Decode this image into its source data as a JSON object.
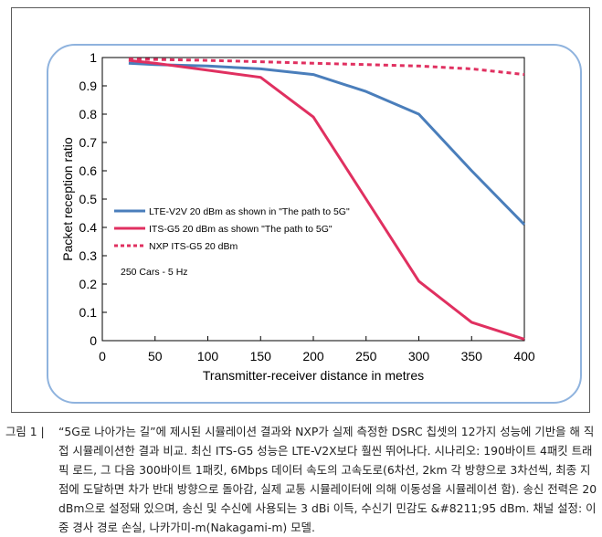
{
  "chart_data": {
    "type": "line",
    "title": "",
    "xlabel": "Transmitter-receiver distance in metres",
    "ylabel": "Packet reception ratio",
    "xlim": [
      0,
      400
    ],
    "ylim": [
      0,
      1
    ],
    "x_ticks": [
      "0",
      "50",
      "100",
      "150",
      "200",
      "250",
      "300",
      "350",
      "400"
    ],
    "y_ticks": [
      "0",
      "0.1",
      "0.2",
      "0.3",
      "0.4",
      "0.5",
      "0.6",
      "0.7",
      "0.8",
      "0.9",
      "1"
    ],
    "grid": false,
    "legend_position": "center-left",
    "annotation": "250 Cars - 5 Hz",
    "series": [
      {
        "name": "LTE-V2V 20 dBm as shown in \"The path to 5G\"",
        "color": "#4a7ebb",
        "style": "solid",
        "x": [
          25,
          50,
          100,
          150,
          200,
          250,
          300,
          350,
          400
        ],
        "y": [
          0.98,
          0.975,
          0.97,
          0.96,
          0.94,
          0.88,
          0.8,
          0.6,
          0.41
        ]
      },
      {
        "name": "ITS-G5 20 dBm as shown \"The path to 5G\"",
        "color": "#e03060",
        "style": "solid",
        "x": [
          25,
          50,
          100,
          150,
          200,
          250,
          300,
          350,
          400
        ],
        "y": [
          0.99,
          0.98,
          0.955,
          0.93,
          0.79,
          0.5,
          0.21,
          0.065,
          0.005
        ]
      },
      {
        "name": "NXP ITS-G5 20 dBm",
        "color": "#e03060",
        "style": "dashed",
        "x": [
          25,
          100,
          200,
          300,
          350,
          400
        ],
        "y": [
          0.995,
          0.99,
          0.98,
          0.97,
          0.96,
          0.94
        ]
      }
    ]
  },
  "caption": {
    "label": "그림 1 |",
    "text": "“5G로 나아가는 길”에 제시된 시뮬레이션 결과와 NXP가 실제 측정한 DSRC 칩셋의 12가지 성능에 기반을 해 직접 시뮬레이션한 결과 비교. 최신 ITS-G5 성능은 LTE-V2X보다 훨씬 뛰어나다. 시나리오: 190바이트 4패킷 트래픽 로드, 그 다음 300바이트 1패킷, 6Mbps 데이터 속도의 고속도로(6차선, 2km 각 방향으로 3차선씩, 최종 지점에 도달하면 차가 반대 방향으로 돌아감, 실제 교통 시뮬레이터에 의해 이동성을 시뮬레이션 함). 송신 전력은 20 dBm으로 설정돼 있으며, 송신 및 수신에 사용되는 3 dBi 이득, 수신기 민감도 &#8211;95 dBm. 채널 설정: 이중 경사 경로 손실, 나카가미-m(Nakagami-m) 모델."
  }
}
